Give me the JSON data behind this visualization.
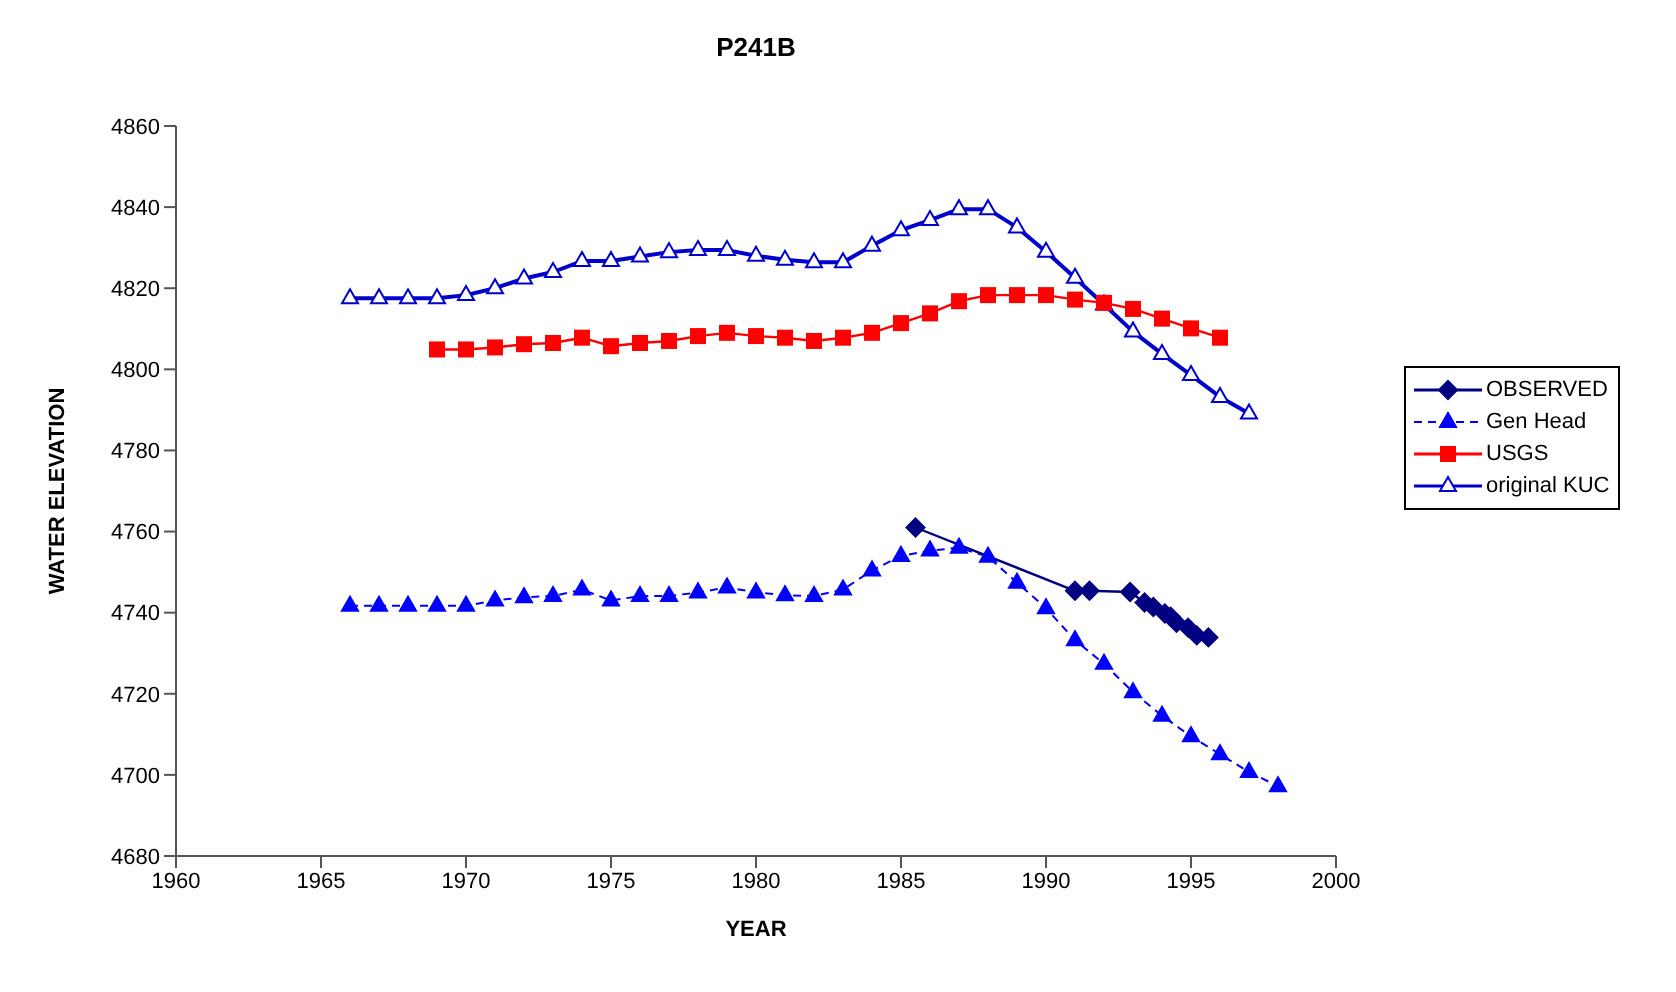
{
  "chart_data": {
    "type": "line",
    "title": "P241B",
    "xlabel": "YEAR",
    "ylabel": "WATER ELEVATION",
    "xlim": [
      1960,
      2000
    ],
    "xticks": [
      1960,
      1965,
      1970,
      1975,
      1980,
      1985,
      1990,
      1995,
      2000
    ],
    "ylim": [
      4680,
      4860
    ],
    "yticks": [
      4680,
      4700,
      4720,
      4740,
      4760,
      4780,
      4800,
      4820,
      4840,
      4860
    ],
    "grid": false,
    "legend": "right",
    "series": [
      {
        "name": "OBSERVED",
        "color": "#000080",
        "marker": "diamond",
        "line_style": "solid",
        "x": [
          1985.5,
          1991.0,
          1991.5,
          1992.9,
          1993.4,
          1993.7,
          1994.1,
          1994.3,
          1994.5,
          1994.9,
          1995.2,
          1995.6
        ],
        "values": [
          4761,
          4745.4,
          4745.4,
          4745.1,
          4742.5,
          4741.4,
          4739.8,
          4739,
          4737.5,
          4736.3,
          4734.4,
          4733.9
        ]
      },
      {
        "name": "Gen Head",
        "color": "#0000ff",
        "marker": "triangle",
        "line_style": "dashed",
        "x": [
          1966,
          1967,
          1968,
          1969,
          1970,
          1971,
          1972,
          1973,
          1974,
          1975,
          1976,
          1977,
          1978,
          1979,
          1980,
          1981,
          1982,
          1983,
          1984,
          1985,
          1986,
          1987,
          1988,
          1989,
          1990,
          1991,
          1992,
          1993,
          1994,
          1995,
          1996,
          1997,
          1998
        ],
        "values": [
          4741.7,
          4741.7,
          4741.7,
          4741.7,
          4741.7,
          4743,
          4743.8,
          4744.1,
          4745.7,
          4743,
          4744.1,
          4744.1,
          4745,
          4746.2,
          4745,
          4744.3,
          4744.1,
          4745.7,
          4750.4,
          4754,
          4755.3,
          4756,
          4753.8,
          4747.4,
          4741.1,
          4733.2,
          4727.4,
          4720.4,
          4714.6,
          4709.5,
          4705.1,
          4700.7,
          4697.2
        ]
      },
      {
        "name": "USGS",
        "color": "#ff0000",
        "marker": "square",
        "line_style": "solid",
        "x": [
          1969,
          1970,
          1971,
          1972,
          1973,
          1974,
          1975,
          1976,
          1977,
          1978,
          1979,
          1980,
          1981,
          1982,
          1983,
          1984,
          1985,
          1986,
          1987,
          1988,
          1989,
          1990,
          1991,
          1992,
          1993,
          1994,
          1995,
          1996
        ],
        "values": [
          4804.9,
          4804.9,
          4805.4,
          4806.2,
          4806.5,
          4807.8,
          4805.7,
          4806.5,
          4807,
          4808.2,
          4809,
          4808.2,
          4807.8,
          4807,
          4807.8,
          4809,
          4811.4,
          4813.8,
          4816.8,
          4818.3,
          4818.3,
          4818.3,
          4817.2,
          4816.4,
          4814.9,
          4812.5,
          4810.1,
          4807.8
        ]
      },
      {
        "name": "original KUC",
        "color": "#0000cc",
        "marker": "triangle",
        "line_style": "solid",
        "x": [
          1966,
          1967,
          1968,
          1969,
          1970,
          1971,
          1972,
          1973,
          1974,
          1975,
          1976,
          1977,
          1978,
          1979,
          1980,
          1981,
          1982,
          1983,
          1984,
          1985,
          1986,
          1987,
          1988,
          1989,
          1990,
          1991,
          1992,
          1993,
          1994,
          1995,
          1996,
          1997
        ],
        "values": [
          4817.5,
          4817.5,
          4817.5,
          4817.5,
          4818.3,
          4820,
          4822.4,
          4824,
          4826.7,
          4826.7,
          4827.8,
          4828.9,
          4829.4,
          4829.4,
          4828,
          4827,
          4826.4,
          4826.4,
          4830.5,
          4834.3,
          4836.8,
          4839.5,
          4839.5,
          4835,
          4829,
          4822.6,
          4816,
          4809.3,
          4803.8,
          4798.6,
          4793.2,
          4789.1
        ]
      }
    ]
  }
}
